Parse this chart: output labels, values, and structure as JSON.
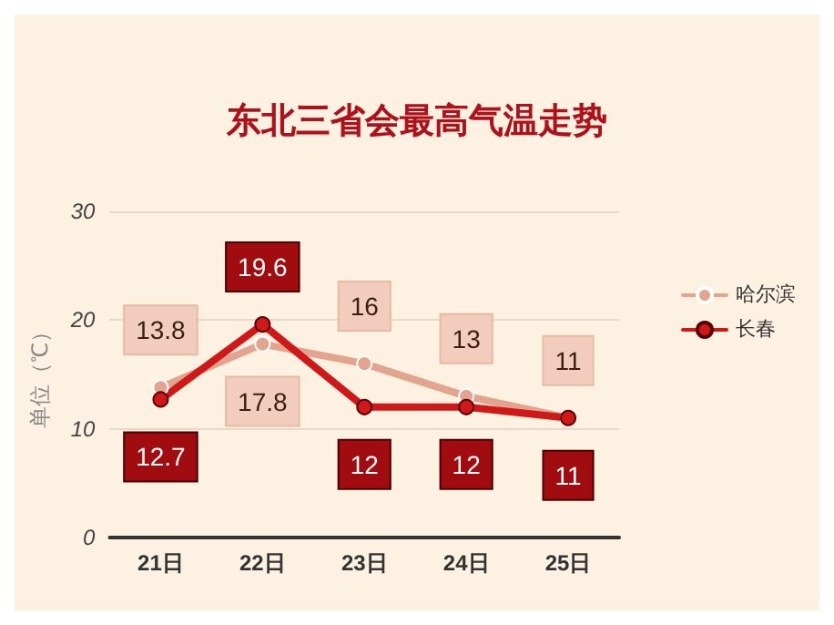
{
  "chart_data": {
    "type": "line",
    "title": "东北三省会最高气温走势",
    "ylabel": "单位（℃）",
    "categories": [
      "21日",
      "22日",
      "23日",
      "24日",
      "25日"
    ],
    "series": [
      {
        "name": "哈尔滨",
        "color": "#e3a48f",
        "values": [
          13.8,
          17.8,
          16,
          13,
          11
        ]
      },
      {
        "name": "长春",
        "color": "#d01818",
        "values": [
          12.7,
          19.6,
          12,
          12,
          11
        ]
      }
    ],
    "ylim": [
      0,
      30
    ],
    "yticks": [
      0,
      10,
      20,
      30
    ],
    "grid": "y",
    "legend": "right",
    "marker": "circle",
    "line_style": "solid",
    "data_labels": true
  }
}
